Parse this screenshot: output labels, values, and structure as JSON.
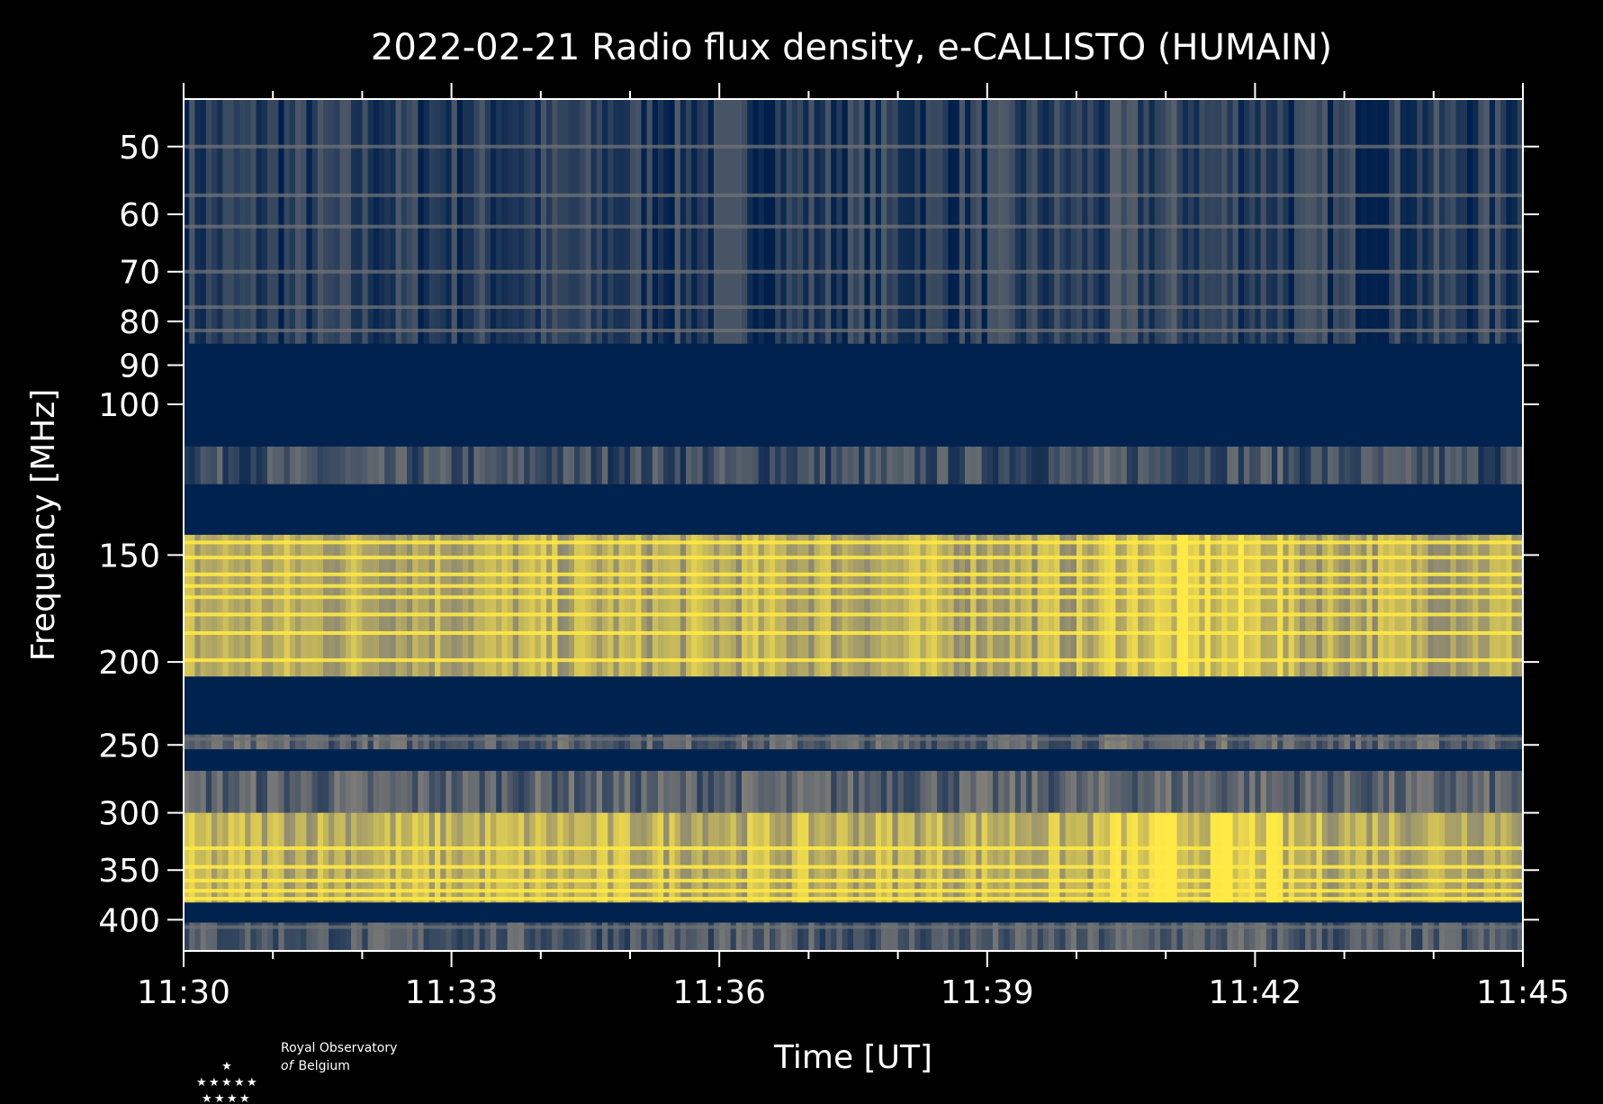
{
  "colors": {
    "background": "#000000",
    "text": "#ffffff",
    "axis": "#ffffff",
    "cmap_low": "#00204c",
    "cmap_mid": "#7c7b78",
    "cmap_high": "#ffe945",
    "gap_fill": "#00224e"
  },
  "chart_data": {
    "type": "heatmap",
    "title": "2022-02-21 Radio flux density, e-CALLISTO (HUMAIN)",
    "xlabel": "Time [UT]",
    "ylabel": "Frequency [MHz]",
    "x_range_minutes": [
      0,
      15
    ],
    "x_ticks": [
      {
        "label": "11:30",
        "minute": 0
      },
      {
        "label": "11:33",
        "minute": 3
      },
      {
        "label": "11:36",
        "minute": 6
      },
      {
        "label": "11:39",
        "minute": 9
      },
      {
        "label": "11:42",
        "minute": 12
      },
      {
        "label": "11:45",
        "minute": 15
      }
    ],
    "y_scale": "log",
    "y_range_mhz": [
      44,
      435
    ],
    "y_inverted": true,
    "y_ticks": [
      {
        "label": "50",
        "value": 50
      },
      {
        "label": "60",
        "value": 60
      },
      {
        "label": "70",
        "value": 70
      },
      {
        "label": "80",
        "value": 80
      },
      {
        "label": "90",
        "value": 90
      },
      {
        "label": "100",
        "value": 100
      },
      {
        "label": "150",
        "value": 150
      },
      {
        "label": "200",
        "value": 200
      },
      {
        "label": "250",
        "value": 250
      },
      {
        "label": "300",
        "value": 300
      },
      {
        "label": "350",
        "value": 350
      },
      {
        "label": "400",
        "value": 400
      }
    ],
    "colormap": "cividis",
    "masked_bands_mhz": [
      [
        85,
        112
      ],
      [
        124,
        142
      ],
      [
        208,
        243
      ],
      [
        253,
        268
      ],
      [
        382,
        403
      ]
    ],
    "bands_mhz": [
      {
        "from": 44,
        "to": 85,
        "level": 0.15
      },
      {
        "from": 112,
        "to": 124,
        "level": 0.25
      },
      {
        "from": 142,
        "to": 208,
        "level": 0.72
      },
      {
        "from": 243,
        "to": 253,
        "level": 0.35
      },
      {
        "from": 268,
        "to": 300,
        "level": 0.35
      },
      {
        "from": 300,
        "to": 382,
        "level": 0.75
      },
      {
        "from": 403,
        "to": 435,
        "level": 0.3
      }
    ],
    "bright_lines_mhz": [
      50,
      57,
      62,
      70,
      77,
      82,
      145,
      151,
      158,
      163,
      168,
      176,
      185,
      199,
      246,
      330,
      347,
      360,
      370,
      378,
      408
    ],
    "grid": false,
    "legend": "none"
  },
  "logo": {
    "line1": "Royal Observatory",
    "line2_italic": "of",
    "line2": "Belgium"
  }
}
